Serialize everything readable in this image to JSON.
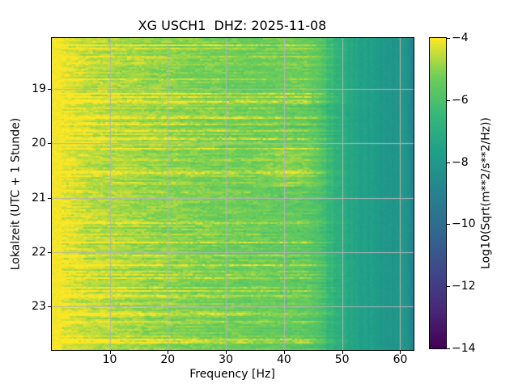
{
  "figure": {
    "title": "XG USCH1  DHZ: 2025-11-08",
    "background_color": "#ffffff"
  },
  "axes": {
    "xlabel": "Frequency [Hz]",
    "ylabel": "Lokalzeit (UTC + 1 Stunde)",
    "x_ticks": [
      10,
      20,
      30,
      40,
      50,
      60
    ],
    "y_ticks": [
      19,
      20,
      21,
      22,
      23
    ],
    "grid_color": "#b4b4b4",
    "frame_color": "#000000"
  },
  "colorbar": {
    "label": "Log10(Sqrt(m**2/s**2/Hz))",
    "ticks": [
      {
        "value": -4,
        "label": "−4"
      },
      {
        "value": -6,
        "label": "−6"
      },
      {
        "value": -8,
        "label": "−8"
      },
      {
        "value": -10,
        "label": "−10"
      },
      {
        "value": -12,
        "label": "−12"
      },
      {
        "value": -14,
        "label": "−14"
      }
    ],
    "value_range": [
      -14,
      -4
    ],
    "colormap": "viridis",
    "viridis_stops": [
      "#440154",
      "#482878",
      "#3e4989",
      "#31688e",
      "#26828e",
      "#1f9e89",
      "#35b779",
      "#6ece58",
      "#fde725"
    ]
  },
  "chart_data": {
    "type": "heatmap",
    "subtype": "spectrogram",
    "title": "XG USCH1  DHZ: 2025-11-08",
    "station_channel": "XG USCH1 DHZ",
    "date": "2025-11-08",
    "xlabel": "Frequency [Hz]",
    "ylabel": "Lokalzeit (UTC + 1 Stunde)",
    "x_range_hz": [
      0,
      62.5
    ],
    "y_range_hours": [
      18.05,
      23.8
    ],
    "x_ticks": [
      10,
      20,
      30,
      40,
      50,
      60
    ],
    "y_ticks": [
      19,
      20,
      21,
      22,
      23
    ],
    "value_scale": "Log10(Sqrt(m**2/s**2/Hz))",
    "value_range": [
      -14,
      -4
    ],
    "colormap": "viridis",
    "grid": true,
    "legend_position": "right-colorbar",
    "freq_profile_log10": [
      [
        0,
        -4.0
      ],
      [
        2,
        -4.3
      ],
      [
        5,
        -4.55
      ],
      [
        10,
        -4.8
      ],
      [
        15,
        -4.95
      ],
      [
        20,
        -5.1
      ],
      [
        25,
        -5.25
      ],
      [
        30,
        -5.4
      ],
      [
        35,
        -5.5
      ],
      [
        40,
        -5.6
      ],
      [
        44,
        -5.75
      ],
      [
        46,
        -6.0
      ],
      [
        48,
        -6.6
      ],
      [
        50,
        -7.1
      ],
      [
        53,
        -7.5
      ],
      [
        56,
        -7.85
      ],
      [
        59,
        -8.15
      ],
      [
        60.6,
        -7.9
      ],
      [
        61.5,
        -8.5
      ],
      [
        62.5,
        -9.2
      ]
    ],
    "features": [
      "strong continuous low-frequency energy below ~2 Hz at about -4",
      "horizontal bright yellow streak rows (time-localized bursts) extending up to ~45 Hz",
      "broadband level drop (shelf) near 47-50 Hz from green into teal background",
      "slightly brighter narrow vertical band near 60.5 Hz",
      "darkest teal-blue levels approaching 62.5 Hz at the right edge",
      "slightly elevated 40-47 Hz patch around 20:10-20:45 local time"
    ]
  }
}
